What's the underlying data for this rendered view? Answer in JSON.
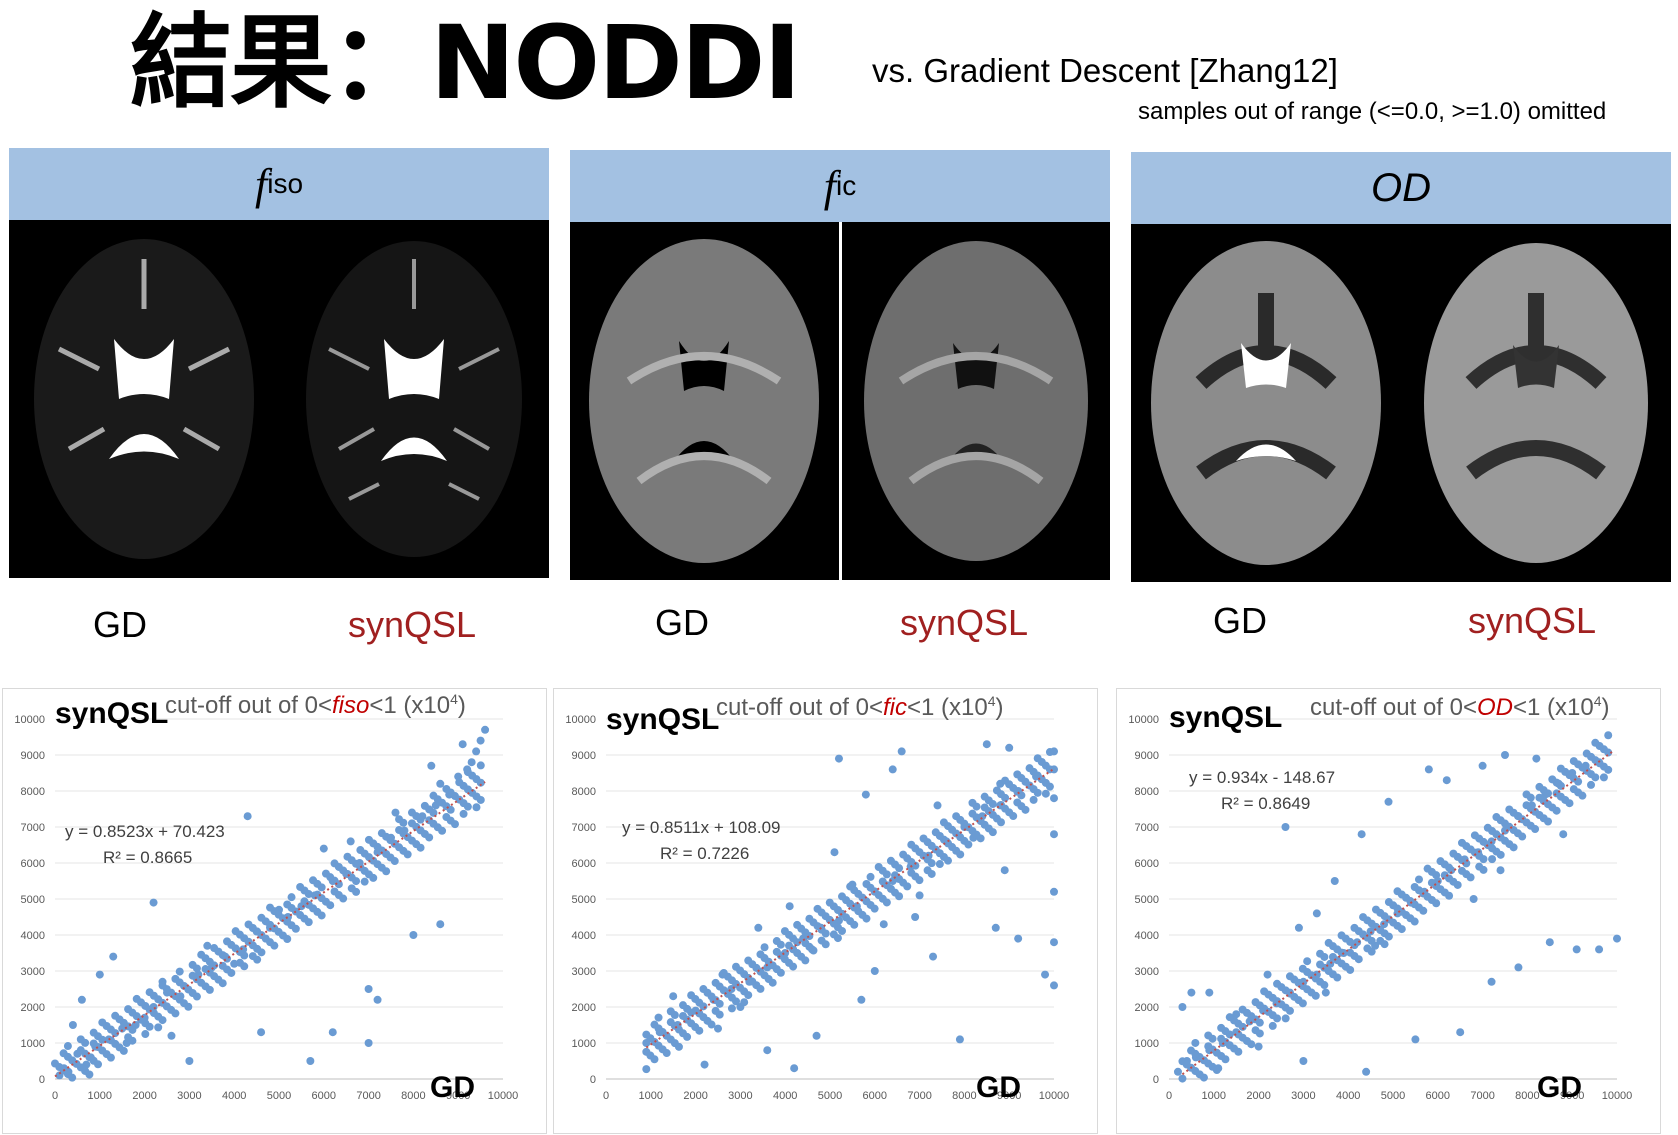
{
  "header": {
    "title": "結果：NODDI",
    "subtitle": "vs. Gradient Descent [Zhang12]",
    "note": "samples out of range (<=0.0, >=1.0) omitted"
  },
  "panels": [
    {
      "symbol": "f",
      "sub": "iso",
      "left_label": "GD",
      "right_label": "synQSL"
    },
    {
      "symbol": "f",
      "sub": "ic",
      "left_label": "GD",
      "right_label": "synQSL"
    },
    {
      "symbol": "OD",
      "sub": "",
      "left_label": "GD",
      "right_label": "synQSL"
    }
  ],
  "colors": {
    "header_bg": "#a3c1e2",
    "point": "#6a9bd3",
    "trend": "#c0504d",
    "synqsl_text": "#a02020"
  },
  "chart_data": [
    {
      "type": "scatter",
      "label_left": "synQSL",
      "title_pre": "cut-off out of 0<",
      "title_var": "fiso",
      "title_post": "<1 (x10",
      "title_exp": "4",
      "title_end": ")",
      "xlabel": "GD",
      "xlim": [
        0,
        10000
      ],
      "ylim": [
        0,
        10000
      ],
      "xticks": [
        "0",
        "1000",
        "2000",
        "3000",
        "4000",
        "5000",
        "6000",
        "7000",
        "8000",
        "9000",
        "10000"
      ],
      "yticks": [
        "0",
        "1000",
        "2000",
        "3000",
        "4000",
        "5000",
        "6000",
        "7000",
        "8000",
        "9000",
        "10000"
      ],
      "equation": "y = 0.8523x + 70.423",
      "r2": "R² = 0.8665",
      "slope": 0.8523,
      "intercept": 70.423,
      "trend_x": [
        0,
        9600
      ],
      "points": [
        [
          200,
          300
        ],
        [
          500,
          700
        ],
        [
          800,
          600
        ],
        [
          1200,
          1100
        ],
        [
          1500,
          1400
        ],
        [
          1800,
          1500
        ],
        [
          2200,
          2000
        ],
        [
          2500,
          2400
        ],
        [
          2800,
          2300
        ],
        [
          3200,
          2900
        ],
        [
          3500,
          3100
        ],
        [
          3800,
          3400
        ],
        [
          4200,
          3600
        ],
        [
          4500,
          4100
        ],
        [
          4800,
          4200
        ],
        [
          5200,
          4500
        ],
        [
          5500,
          4800
        ],
        [
          5800,
          5100
        ],
        [
          6200,
          5500
        ],
        [
          6500,
          5700
        ],
        [
          6800,
          6000
        ],
        [
          7200,
          6300
        ],
        [
          7500,
          6700
        ],
        [
          7800,
          6900
        ],
        [
          8200,
          7300
        ],
        [
          8500,
          7600
        ],
        [
          8800,
          7900
        ],
        [
          9000,
          8400
        ],
        [
          9200,
          8600
        ],
        [
          9400,
          9100
        ],
        [
          9600,
          9700
        ],
        [
          9500,
          9400
        ],
        [
          9300,
          8800
        ],
        [
          8600,
          8200
        ],
        [
          400,
          1500
        ],
        [
          600,
          2200
        ],
        [
          1000,
          2900
        ],
        [
          1300,
          3400
        ],
        [
          2200,
          4900
        ],
        [
          2600,
          1200
        ],
        [
          3000,
          500
        ],
        [
          4600,
          1300
        ],
        [
          5700,
          500
        ],
        [
          6200,
          1300
        ],
        [
          7000,
          2500
        ],
        [
          7200,
          2200
        ],
        [
          8000,
          4000
        ],
        [
          8600,
          4300
        ],
        [
          4300,
          7300
        ],
        [
          6000,
          6400
        ],
        [
          7000,
          1000
        ],
        [
          100,
          100
        ],
        [
          300,
          200
        ],
        [
          700,
          400
        ],
        [
          900,
          900
        ],
        [
          1600,
          1000
        ],
        [
          2000,
          1700
        ],
        [
          2400,
          2700
        ],
        [
          3400,
          3700
        ],
        [
          4000,
          3200
        ],
        [
          5000,
          4700
        ],
        [
          6600,
          6600
        ],
        [
          7600,
          7400
        ],
        [
          8400,
          8700
        ],
        [
          9100,
          9300
        ]
      ]
    },
    {
      "type": "scatter",
      "label_left": "synQSL",
      "title_pre": "cut-off out of 0<",
      "title_var": "fic",
      "title_post": "<1 (x10",
      "title_exp": "4",
      "title_end": ")",
      "xlabel": "GD",
      "xlim": [
        0,
        10000
      ],
      "ylim": [
        0,
        10000
      ],
      "xticks": [
        "0",
        "1000",
        "2000",
        "3000",
        "4000",
        "5000",
        "6000",
        "7000",
        "8000",
        "9000",
        "10000"
      ],
      "yticks": [
        "0",
        "1000",
        "2000",
        "3000",
        "4000",
        "5000",
        "6000",
        "7000",
        "8000",
        "9000",
        "10000"
      ],
      "equation": "y = 0.8511x + 108.09",
      "r2": "R² = 0.7226",
      "slope": 0.8511,
      "intercept": 108.09,
      "trend_x": [
        900,
        10000
      ],
      "points": [
        [
          900,
          1000
        ],
        [
          1200,
          1300
        ],
        [
          1600,
          1500
        ],
        [
          2000,
          1900
        ],
        [
          2400,
          2200
        ],
        [
          2800,
          2500
        ],
        [
          3200,
          2700
        ],
        [
          3600,
          3100
        ],
        [
          4000,
          3500
        ],
        [
          4400,
          3900
        ],
        [
          4800,
          4200
        ],
        [
          5200,
          4400
        ],
        [
          5600,
          4800
        ],
        [
          6000,
          5200
        ],
        [
          6400,
          5500
        ],
        [
          6800,
          5900
        ],
        [
          7200,
          6200
        ],
        [
          7600,
          6600
        ],
        [
          8000,
          7000
        ],
        [
          8400,
          7300
        ],
        [
          8800,
          7600
        ],
        [
          9200,
          8000
        ],
        [
          9600,
          8400
        ],
        [
          10000,
          9100
        ],
        [
          10000,
          8600
        ],
        [
          10000,
          7800
        ],
        [
          10000,
          6800
        ],
        [
          10000,
          5200
        ],
        [
          10000,
          3800
        ],
        [
          10000,
          2600
        ],
        [
          9800,
          2900
        ],
        [
          9200,
          3900
        ],
        [
          8700,
          4200
        ],
        [
          7900,
          1100
        ],
        [
          5700,
          2200
        ],
        [
          4700,
          1200
        ],
        [
          4200,
          300
        ],
        [
          3600,
          800
        ],
        [
          2200,
          400
        ],
        [
          2600,
          2900
        ],
        [
          3400,
          4200
        ],
        [
          4100,
          4800
        ],
        [
          5100,
          6300
        ],
        [
          5800,
          7900
        ],
        [
          6400,
          8600
        ],
        [
          6600,
          9100
        ],
        [
          8500,
          9300
        ],
        [
          9000,
          9200
        ],
        [
          5200,
          8900
        ],
        [
          2500,
          1400
        ],
        [
          1500,
          2300
        ],
        [
          3000,
          2000
        ],
        [
          4600,
          3600
        ],
        [
          5500,
          5400
        ],
        [
          6200,
          4300
        ],
        [
          7000,
          5100
        ],
        [
          7400,
          7600
        ],
        [
          8200,
          6700
        ],
        [
          8800,
          8200
        ],
        [
          6000,
          3000
        ],
        [
          6900,
          4500
        ],
        [
          7300,
          3400
        ],
        [
          8900,
          5800
        ]
      ]
    },
    {
      "type": "scatter",
      "label_left": "synQSL",
      "title_pre": "cut-off out of 0<",
      "title_var": "OD",
      "title_post": "<1 (x10",
      "title_exp": "4",
      "title_end": ")",
      "xlabel": "GD",
      "xlim": [
        0,
        10000
      ],
      "ylim": [
        0,
        10000
      ],
      "xticks": [
        "0",
        "1000",
        "2000",
        "3000",
        "4000",
        "5000",
        "6000",
        "7000",
        "8000",
        "9000",
        "10000"
      ],
      "yticks": [
        "0",
        "1000",
        "2000",
        "3000",
        "4000",
        "5000",
        "6000",
        "7000",
        "8000",
        "9000",
        "10000"
      ],
      "equation": "y = 0.934x - 148.67",
      "r2": "R² = 0.8649",
      "slope": 0.934,
      "intercept": -148.67,
      "trend_x": [
        300,
        9900
      ],
      "points": [
        [
          200,
          200
        ],
        [
          400,
          500
        ],
        [
          600,
          600
        ],
        [
          900,
          800
        ],
        [
          1200,
          1000
        ],
        [
          1500,
          1300
        ],
        [
          1800,
          1600
        ],
        [
          2100,
          1900
        ],
        [
          2400,
          2100
        ],
        [
          2700,
          2400
        ],
        [
          3000,
          2700
        ],
        [
          3300,
          2900
        ],
        [
          3600,
          3200
        ],
        [
          3900,
          3500
        ],
        [
          4200,
          3800
        ],
        [
          4500,
          4100
        ],
        [
          4800,
          4300
        ],
        [
          5100,
          4600
        ],
        [
          5400,
          4900
        ],
        [
          5700,
          5200
        ],
        [
          6000,
          5500
        ],
        [
          6300,
          5800
        ],
        [
          6600,
          6100
        ],
        [
          6900,
          6300
        ],
        [
          7200,
          6600
        ],
        [
          7500,
          6900
        ],
        [
          7800,
          7300
        ],
        [
          8100,
          7600
        ],
        [
          8400,
          7900
        ],
        [
          8700,
          8200
        ],
        [
          9000,
          8500
        ],
        [
          9300,
          8700
        ],
        [
          9600,
          8800
        ],
        [
          10000,
          3900
        ],
        [
          9600,
          3600
        ],
        [
          9100,
          3600
        ],
        [
          8500,
          3800
        ],
        [
          7800,
          3100
        ],
        [
          7200,
          2700
        ],
        [
          6500,
          1300
        ],
        [
          5500,
          1100
        ],
        [
          4400,
          200
        ],
        [
          3000,
          500
        ],
        [
          2000,
          900
        ],
        [
          1100,
          300
        ],
        [
          500,
          2400
        ],
        [
          300,
          2000
        ],
        [
          900,
          2400
        ],
        [
          2200,
          2900
        ],
        [
          2900,
          4200
        ],
        [
          3300,
          4600
        ],
        [
          3700,
          5500
        ],
        [
          4300,
          6800
        ],
        [
          4900,
          7700
        ],
        [
          5800,
          8600
        ],
        [
          6200,
          8300
        ],
        [
          7000,
          8700
        ],
        [
          7500,
          9000
        ],
        [
          8200,
          8900
        ],
        [
          2600,
          7000
        ],
        [
          1500,
          1800
        ],
        [
          3500,
          2400
        ],
        [
          4600,
          3700
        ],
        [
          6800,
          5000
        ],
        [
          7400,
          5800
        ],
        [
          8800,
          6800
        ]
      ]
    }
  ]
}
